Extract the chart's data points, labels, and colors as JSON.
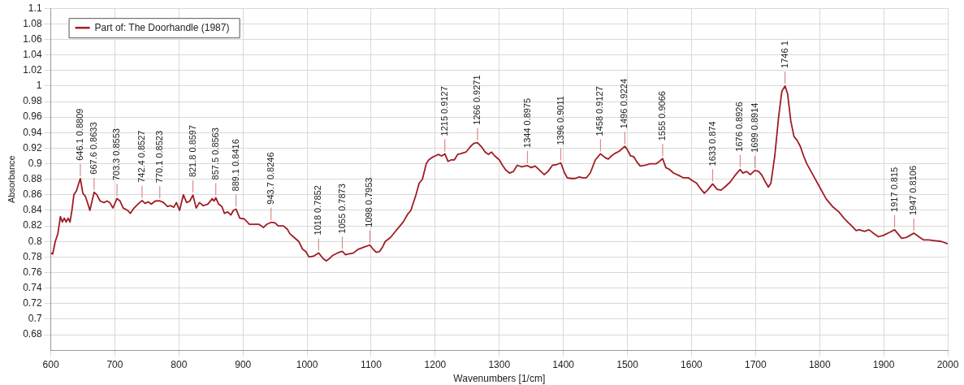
{
  "chart_data": {
    "type": "line",
    "xlabel": "Wavenumbers [1/cm]",
    "ylabel": "Absorbance",
    "xlim": [
      600,
      2000
    ],
    "xticks": [
      600,
      700,
      800,
      900,
      1000,
      1100,
      1200,
      1300,
      1400,
      1500,
      1600,
      1700,
      1800,
      1900,
      2000
    ],
    "ylim": [
      0.66,
      1.1
    ],
    "yticks": [
      0.68,
      0.7,
      0.72,
      0.74,
      0.76,
      0.78,
      0.8,
      0.82,
      0.84,
      0.86,
      0.88,
      0.9,
      0.92,
      0.94,
      0.96,
      0.98,
      1,
      1.02,
      1.04,
      1.06,
      1.08,
      1.1
    ],
    "grid": true,
    "legend": "top left",
    "marker": "none",
    "line_style": "solid",
    "series": [
      {
        "name": "Part of: The Doorhandle (1987)",
        "color": "#a01c22",
        "x": [
          600,
          603,
          607,
          611,
          615,
          618,
          621,
          624,
          627,
          630,
          633,
          636,
          640,
          646.1,
          650,
          654,
          658,
          661,
          667.6,
          672,
          677,
          683,
          688,
          692,
          697,
          703.3,
          708,
          713,
          720,
          724,
          730,
          736,
          742.4,
          747,
          752,
          757,
          763,
          770.1,
          776,
          782,
          787,
          792,
          796,
          801,
          807,
          812,
          817,
          821.8,
          827,
          832,
          838,
          845,
          852,
          855,
          857.5,
          862,
          867,
          871,
          876,
          881,
          885,
          889.1,
          895,
          902,
          910,
          918,
          925,
          932,
          937,
          943.7,
          950,
          955,
          963,
          969,
          973,
          980,
          987,
          993,
          998,
          1003,
          1010,
          1018,
          1025,
          1030,
          1035,
          1040,
          1045,
          1050,
          1055,
          1060,
          1065,
          1072,
          1080,
          1090,
          1098,
          1103,
          1108,
          1113,
          1118,
          1122,
          1130,
          1137,
          1145,
          1150,
          1157,
          1162,
          1170,
          1175,
          1180,
          1186,
          1190,
          1195,
          1200,
          1205,
          1210,
          1215,
          1220,
          1225,
          1230,
          1235,
          1240,
          1248,
          1255,
          1260,
          1266,
          1272,
          1278,
          1283,
          1288,
          1293,
          1300,
          1305,
          1310,
          1316,
          1322,
          1328,
          1335,
          1344,
          1350,
          1356,
          1365,
          1370,
          1376,
          1383,
          1390,
          1396,
          1402,
          1406,
          1412,
          1418,
          1425,
          1430,
          1436,
          1442,
          1450,
          1458,
          1465,
          1470,
          1475,
          1480,
          1487,
          1496,
          1500,
          1505,
          1510,
          1515,
          1520,
          1528,
          1535,
          1545,
          1550,
          1555,
          1560,
          1565,
          1572,
          1580,
          1587,
          1595,
          1600,
          1608,
          1614,
          1620,
          1625,
          1633,
          1640,
          1646,
          1652,
          1660,
          1668,
          1676,
          1680,
          1686,
          1692,
          1699,
          1705,
          1710,
          1715,
          1720,
          1724,
          1730,
          1736,
          1741,
          1746,
          1750,
          1755,
          1760,
          1765,
          1770,
          1775,
          1780,
          1790,
          1800,
          1810,
          1820,
          1830,
          1840,
          1850,
          1857,
          1862,
          1870,
          1877,
          1885,
          1892,
          1900,
          1910,
          1917,
          1922,
          1928,
          1935,
          1947,
          1955,
          1962,
          1970,
          1980,
          1990,
          2000
        ],
        "values": [
          0.785,
          0.784,
          0.8,
          0.81,
          0.832,
          0.825,
          0.83,
          0.825,
          0.83,
          0.825,
          0.84,
          0.86,
          0.865,
          0.8809,
          0.862,
          0.858,
          0.848,
          0.84,
          0.8633,
          0.86,
          0.852,
          0.85,
          0.852,
          0.85,
          0.843,
          0.8553,
          0.852,
          0.843,
          0.84,
          0.836,
          0.843,
          0.848,
          0.8527,
          0.849,
          0.851,
          0.848,
          0.852,
          0.8523,
          0.85,
          0.845,
          0.846,
          0.844,
          0.85,
          0.84,
          0.86,
          0.85,
          0.852,
          0.8597,
          0.843,
          0.85,
          0.846,
          0.848,
          0.855,
          0.852,
          0.8563,
          0.848,
          0.845,
          0.836,
          0.838,
          0.834,
          0.84,
          0.8416,
          0.83,
          0.829,
          0.822,
          0.822,
          0.822,
          0.818,
          0.822,
          0.8246,
          0.824,
          0.82,
          0.82,
          0.816,
          0.81,
          0.805,
          0.8,
          0.79,
          0.787,
          0.78,
          0.781,
          0.7852,
          0.778,
          0.775,
          0.778,
          0.782,
          0.784,
          0.786,
          0.7873,
          0.783,
          0.784,
          0.785,
          0.79,
          0.793,
          0.7953,
          0.79,
          0.786,
          0.787,
          0.793,
          0.8,
          0.805,
          0.812,
          0.82,
          0.825,
          0.835,
          0.84,
          0.86,
          0.875,
          0.88,
          0.9,
          0.905,
          0.908,
          0.91,
          0.912,
          0.91,
          0.9127,
          0.903,
          0.905,
          0.905,
          0.912,
          0.913,
          0.915,
          0.922,
          0.926,
          0.9271,
          0.922,
          0.915,
          0.912,
          0.915,
          0.91,
          0.905,
          0.898,
          0.892,
          0.888,
          0.89,
          0.898,
          0.896,
          0.8975,
          0.895,
          0.897,
          0.89,
          0.886,
          0.89,
          0.898,
          0.899,
          0.9011,
          0.888,
          0.882,
          0.881,
          0.881,
          0.883,
          0.882,
          0.882,
          0.888,
          0.905,
          0.9127,
          0.908,
          0.906,
          0.91,
          0.913,
          0.916,
          0.9224,
          0.918,
          0.91,
          0.909,
          0.902,
          0.897,
          0.898,
          0.9,
          0.9,
          0.903,
          0.9066,
          0.895,
          0.893,
          0.888,
          0.885,
          0.882,
          0.882,
          0.879,
          0.875,
          0.868,
          0.862,
          0.866,
          0.874,
          0.867,
          0.866,
          0.87,
          0.876,
          0.885,
          0.8926,
          0.888,
          0.89,
          0.886,
          0.8914,
          0.89,
          0.885,
          0.877,
          0.87,
          0.875,
          0.91,
          0.96,
          0.993,
          1,
          0.99,
          0.955,
          0.935,
          0.93,
          0.922,
          0.91,
          0.9,
          0.885,
          0.87,
          0.855,
          0.845,
          0.838,
          0.828,
          0.82,
          0.814,
          0.815,
          0.813,
          0.815,
          0.81,
          0.806,
          0.808,
          0.812,
          0.815,
          0.81,
          0.804,
          0.805,
          0.8106,
          0.806,
          0.802,
          0.802,
          0.801,
          0.8,
          0.797
        ]
      }
    ],
    "annotations": [
      {
        "text": "646.1 0.8809",
        "x": 646.1,
        "y": 0.8809
      },
      {
        "text": "667.6 0.8633",
        "x": 667.6,
        "y": 0.8633
      },
      {
        "text": "703.3 0.8553",
        "x": 703.3,
        "y": 0.8553
      },
      {
        "text": "742.4 0.8527",
        "x": 742.4,
        "y": 0.8527
      },
      {
        "text": "770.1 0.8523",
        "x": 770.1,
        "y": 0.8523
      },
      {
        "text": "821.8 0.8597",
        "x": 821.8,
        "y": 0.8597
      },
      {
        "text": "857.5 0.8563",
        "x": 857.5,
        "y": 0.8563
      },
      {
        "text": "889.1 0.8416",
        "x": 889.1,
        "y": 0.8416
      },
      {
        "text": "943.7 0.8246",
        "x": 943.7,
        "y": 0.8246
      },
      {
        "text": "1018 0.7852",
        "x": 1018,
        "y": 0.7852
      },
      {
        "text": "1055 0.7873",
        "x": 1055,
        "y": 0.7873
      },
      {
        "text": "1098 0.7953",
        "x": 1098,
        "y": 0.7953
      },
      {
        "text": "1215 0.9127",
        "x": 1215,
        "y": 0.9127
      },
      {
        "text": "1266 0.9271",
        "x": 1266,
        "y": 0.9271
      },
      {
        "text": "1344 0.8975",
        "x": 1344,
        "y": 0.8975
      },
      {
        "text": "1396 0.9011",
        "x": 1396,
        "y": 0.9011
      },
      {
        "text": "1458 0.9127",
        "x": 1458,
        "y": 0.9127
      },
      {
        "text": "1496 0.9224",
        "x": 1496,
        "y": 0.9224
      },
      {
        "text": "1555 0.9066",
        "x": 1555,
        "y": 0.9066
      },
      {
        "text": "1633 0.874",
        "x": 1633,
        "y": 0.874
      },
      {
        "text": "1676 0.8926",
        "x": 1676,
        "y": 0.8926
      },
      {
        "text": "1699 0.8914",
        "x": 1699,
        "y": 0.8914
      },
      {
        "text": "1746 1",
        "x": 1746,
        "y": 1
      },
      {
        "text": "1917 0.815",
        "x": 1917,
        "y": 0.815
      },
      {
        "text": "1947 0.8106",
        "x": 1947,
        "y": 0.8106
      }
    ]
  }
}
